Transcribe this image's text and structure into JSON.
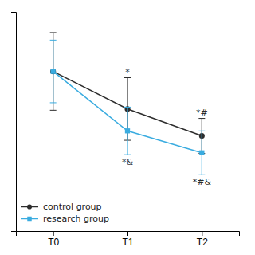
{
  "chart_data": {
    "type": "line",
    "categories": [
      "T0",
      "T1",
      "T2"
    ],
    "series": [
      {
        "name": "control group",
        "color": "#2d2d2d",
        "marker": "circle",
        "line_style": "solid",
        "values": [
          2.55,
          1.95,
          1.52
        ],
        "errors": [
          0.62,
          0.5,
          0.28
        ]
      },
      {
        "name": "research group",
        "color": "#3aace0",
        "marker": "square",
        "line_style": "solid",
        "values": [
          2.55,
          1.6,
          1.25
        ],
        "errors": [
          0.5,
          0.38,
          0.35
        ]
      }
    ],
    "ylim": [
      0,
      3.5
    ],
    "yticks": [],
    "tick_labels": "x",
    "grid": false,
    "legend": "lower-left",
    "annotations": [
      {
        "text": "*",
        "series": "control group",
        "category": "T1"
      },
      {
        "text": "*&",
        "series": "research group",
        "category": "T1"
      },
      {
        "text": "*#",
        "series": "control group",
        "category": "T2"
      },
      {
        "text": "*#&",
        "series": "research group",
        "category": "T2"
      }
    ]
  }
}
